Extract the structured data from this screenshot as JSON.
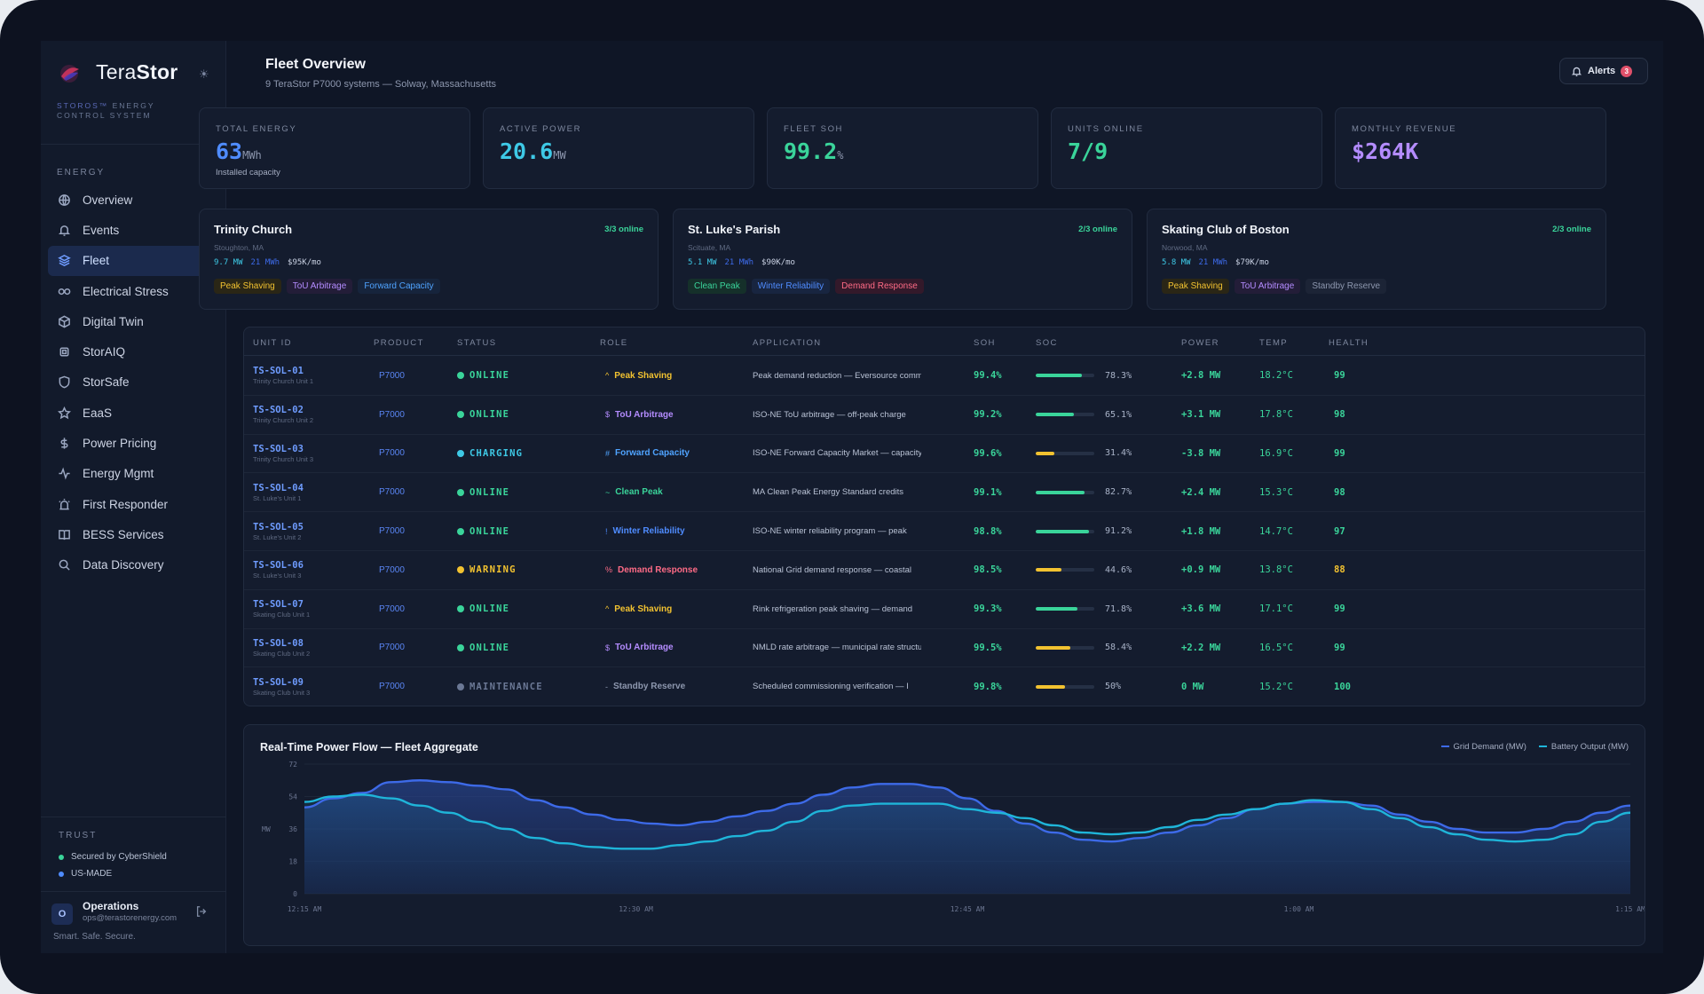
{
  "brand": {
    "name_light": "Tera",
    "name_bold": "Stor",
    "sub_os": "STOROS™",
    "sub_rest": " ENERGY CONTROL SYSTEM"
  },
  "sidebar": {
    "section": "ENERGY",
    "items": [
      {
        "label": "Overview",
        "icon": "globe-icon"
      },
      {
        "label": "Events",
        "icon": "bell-icon"
      },
      {
        "label": "Fleet",
        "icon": "layers-icon"
      },
      {
        "label": "Electrical Stress",
        "icon": "link-icon"
      },
      {
        "label": "Digital Twin",
        "icon": "cube-icon"
      },
      {
        "label": "StorAIQ",
        "icon": "chip-icon"
      },
      {
        "label": "StorSafe",
        "icon": "shield-icon"
      },
      {
        "label": "EaaS",
        "icon": "star-icon"
      },
      {
        "label": "Power Pricing",
        "icon": "dollar-icon"
      },
      {
        "label": "Energy Mgmt",
        "icon": "activity-icon"
      },
      {
        "label": "First Responder",
        "icon": "siren-icon"
      },
      {
        "label": "BESS Services",
        "icon": "book-icon"
      },
      {
        "label": "Data Discovery",
        "icon": "search-icon"
      }
    ],
    "active_index": 2,
    "trust_label": "TRUST",
    "trust_items": [
      "Secured by CyberShield",
      "US-MADE"
    ],
    "user": {
      "initial": "O",
      "name": "Operations",
      "email": "ops@terastorenergy.com"
    },
    "tagline": "Smart. Safe. Secure."
  },
  "header": {
    "title": "Fleet Overview",
    "subtitle": "9 TeraStor P7000 systems — Solway, Massachusetts",
    "alerts_label": "Alerts",
    "alerts_count": "3"
  },
  "kpis": [
    {
      "label": "TOTAL ENERGY",
      "value": "63",
      "unit": "MWh",
      "note": "Installed capacity",
      "color": "#4f8cff"
    },
    {
      "label": "ACTIVE POWER",
      "value": "20.6",
      "unit": "MW",
      "note": "",
      "color": "#3ec9e6"
    },
    {
      "label": "FLEET SOH",
      "value": "99.2",
      "unit": "%",
      "note": "",
      "color": "#3ad49a"
    },
    {
      "label": "UNITS ONLINE",
      "value": "7/9",
      "unit": "",
      "note": "",
      "color": "#3ad49a"
    },
    {
      "label": "MONTHLY REVENUE",
      "value": "$264K",
      "unit": "",
      "note": "",
      "color": "#b48cff"
    }
  ],
  "sites": [
    {
      "name": "Trinity Church",
      "online": "3/3 online",
      "location": "Stoughton, MA",
      "energy": "9.7 MW",
      "capacity": "21 MWh",
      "revenue": "$95K/mo",
      "tags": [
        {
          "label": "Peak Shaving",
          "color": "#f2c230",
          "bg": "#2a2616"
        },
        {
          "label": "ToU Arbitrage",
          "color": "#b48cff",
          "bg": "#231d38"
        },
        {
          "label": "Forward Capacity",
          "color": "#4fa3ff",
          "bg": "#16243c"
        }
      ]
    },
    {
      "name": "St. Luke's Parish",
      "online": "2/3 online",
      "location": "Scituate, MA",
      "energy": "5.1 MW",
      "capacity": "21 MWh",
      "revenue": "$90K/mo",
      "tags": [
        {
          "label": "Clean Peak",
          "color": "#3ad49a",
          "bg": "#15302a"
        },
        {
          "label": "Winter Reliability",
          "color": "#4f8cff",
          "bg": "#182540"
        },
        {
          "label": "Demand Response",
          "color": "#ff6b86",
          "bg": "#33192a"
        }
      ]
    },
    {
      "name": "Skating Club of Boston",
      "online": "2/3 online",
      "location": "Norwood, MA",
      "energy": "5.8 MW",
      "capacity": "21 MWh",
      "revenue": "$79K/mo",
      "tags": [
        {
          "label": "Peak Shaving",
          "color": "#f2c230",
          "bg": "#2a2616"
        },
        {
          "label": "ToU Arbitrage",
          "color": "#b48cff",
          "bg": "#231d38"
        },
        {
          "label": "Standby Reserve",
          "color": "#8d97ae",
          "bg": "#1c2436"
        }
      ]
    }
  ],
  "table": {
    "headers": [
      "UNIT ID",
      "PRODUCT",
      "STATUS",
      "ROLE",
      "APPLICATION",
      "SOH",
      "SOC",
      "POWER",
      "TEMP",
      "HEALTH"
    ],
    "rows": [
      {
        "id": "TS-SOL-01",
        "name": "Trinity Church Unit 1",
        "product": "P7000",
        "status": "ONLINE",
        "status_color": "#3ad49a",
        "role_sym": "^",
        "role": "Peak Shaving",
        "role_color": "#f2c230",
        "application": "Peak demand reduction — Eversource commercial",
        "soh": "99.4%",
        "soc": 78.3,
        "soc_label": "78.3%",
        "soc_color": "#3ad49a",
        "power": "+2.8 MW",
        "temp": "18.2°C",
        "health": "99",
        "health_color": "#3ad49a"
      },
      {
        "id": "TS-SOL-02",
        "name": "Trinity Church Unit 2",
        "product": "P7000",
        "status": "ONLINE",
        "status_color": "#3ad49a",
        "role_sym": "$",
        "role": "ToU Arbitrage",
        "role_color": "#b48cff",
        "application": "ISO-NE ToU arbitrage — off-peak charge",
        "soh": "99.2%",
        "soc": 65.1,
        "soc_label": "65.1%",
        "soc_color": "#3ad49a",
        "power": "+3.1 MW",
        "temp": "17.8°C",
        "health": "98",
        "health_color": "#3ad49a"
      },
      {
        "id": "TS-SOL-03",
        "name": "Trinity Church Unit 3",
        "product": "P7000",
        "status": "CHARGING",
        "status_color": "#3ec9e6",
        "role_sym": "#",
        "role": "Forward Capacity",
        "role_color": "#4fa3ff",
        "application": "ISO-NE Forward Capacity Market — capacity",
        "soh": "99.6%",
        "soc": 31.4,
        "soc_label": "31.4%",
        "soc_color": "#f2c230",
        "power": "-3.8 MW",
        "temp": "16.9°C",
        "health": "99",
        "health_color": "#3ad49a"
      },
      {
        "id": "TS-SOL-04",
        "name": "St. Luke's Unit 1",
        "product": "P7000",
        "status": "ONLINE",
        "status_color": "#3ad49a",
        "role_sym": "~",
        "role": "Clean Peak",
        "role_color": "#3ad49a",
        "application": "MA Clean Peak Energy Standard credits",
        "soh": "99.1%",
        "soc": 82.7,
        "soc_label": "82.7%",
        "soc_color": "#3ad49a",
        "power": "+2.4 MW",
        "temp": "15.3°C",
        "health": "98",
        "health_color": "#3ad49a"
      },
      {
        "id": "TS-SOL-05",
        "name": "St. Luke's Unit 2",
        "product": "P7000",
        "status": "ONLINE",
        "status_color": "#3ad49a",
        "role_sym": "!",
        "role": "Winter Reliability",
        "role_color": "#4f8cff",
        "application": "ISO-NE winter reliability program — peak",
        "soh": "98.8%",
        "soc": 91.2,
        "soc_label": "91.2%",
        "soc_color": "#3ad49a",
        "power": "+1.8 MW",
        "temp": "14.7°C",
        "health": "97",
        "health_color": "#3ad49a"
      },
      {
        "id": "TS-SOL-06",
        "name": "St. Luke's Unit 3",
        "product": "P7000",
        "status": "WARNING",
        "status_color": "#f2c230",
        "role_sym": "%",
        "role": "Demand Response",
        "role_color": "#ff6b86",
        "application": "National Grid demand response — coastal",
        "soh": "98.5%",
        "soc": 44.6,
        "soc_label": "44.6%",
        "soc_color": "#f2c230",
        "power": "+0.9 MW",
        "temp": "13.8°C",
        "health": "88",
        "health_color": "#f2c230"
      },
      {
        "id": "TS-SOL-07",
        "name": "Skating Club Unit 1",
        "product": "P7000",
        "status": "ONLINE",
        "status_color": "#3ad49a",
        "role_sym": "^",
        "role": "Peak Shaving",
        "role_color": "#f2c230",
        "application": "Rink refrigeration peak shaving — demand",
        "soh": "99.3%",
        "soc": 71.8,
        "soc_label": "71.8%",
        "soc_color": "#3ad49a",
        "power": "+3.6 MW",
        "temp": "17.1°C",
        "health": "99",
        "health_color": "#3ad49a"
      },
      {
        "id": "TS-SOL-08",
        "name": "Skating Club Unit 2",
        "product": "P7000",
        "status": "ONLINE",
        "status_color": "#3ad49a",
        "role_sym": "$",
        "role": "ToU Arbitrage",
        "role_color": "#b48cff",
        "application": "NMLD rate arbitrage — municipal rate structure",
        "soh": "99.5%",
        "soc": 58.4,
        "soc_label": "58.4%",
        "soc_color": "#f2c230",
        "power": "+2.2 MW",
        "temp": "16.5°C",
        "health": "99",
        "health_color": "#3ad49a"
      },
      {
        "id": "TS-SOL-09",
        "name": "Skating Club Unit 3",
        "product": "P7000",
        "status": "MAINTENANCE",
        "status_color": "#6b7895",
        "role_sym": "-",
        "role": "Standby Reserve",
        "role_color": "#8d97ae",
        "application": "Scheduled commissioning verification — I",
        "soh": "99.8%",
        "soc": 50,
        "soc_label": "50%",
        "soc_color": "#f2c230",
        "power": "0 MW",
        "temp": "15.2°C",
        "health": "100",
        "health_color": "#3ad49a"
      }
    ]
  },
  "chart_data": {
    "type": "area",
    "title": "Real-Time Power Flow — Fleet Aggregate",
    "ylabel": "MW",
    "ylim": [
      0,
      72
    ],
    "yticks": [
      0,
      18,
      36,
      54,
      72
    ],
    "xticks": [
      "12:15 AM",
      "12:30 AM",
      "12:45 AM",
      "1:00 AM",
      "1:15 AM"
    ],
    "series": [
      {
        "name": "Grid Demand (MW)",
        "color": "#3d6ae8",
        "values": [
          48,
          53,
          56,
          62,
          63,
          62,
          60,
          58,
          52,
          48,
          44,
          41,
          39,
          38,
          40,
          43,
          46,
          50,
          55,
          59,
          61,
          61,
          59,
          53,
          46,
          39,
          34,
          30,
          29,
          31,
          34,
          38,
          42,
          47,
          50,
          51,
          51,
          49,
          44,
          40,
          36,
          34,
          34,
          36,
          40,
          45,
          49
        ]
      },
      {
        "name": "Battery Output (MW)",
        "color": "#1fb5d9",
        "values": [
          51,
          54,
          55,
          53,
          49,
          45,
          40,
          36,
          31,
          28,
          26,
          25,
          25,
          27,
          29,
          32,
          35,
          40,
          46,
          49,
          50,
          50,
          50,
          47,
          45,
          42,
          38,
          34,
          33,
          34,
          37,
          41,
          44,
          47,
          50,
          52,
          51,
          47,
          42,
          37,
          33,
          30,
          29,
          30,
          33,
          40,
          45
        ]
      }
    ]
  }
}
